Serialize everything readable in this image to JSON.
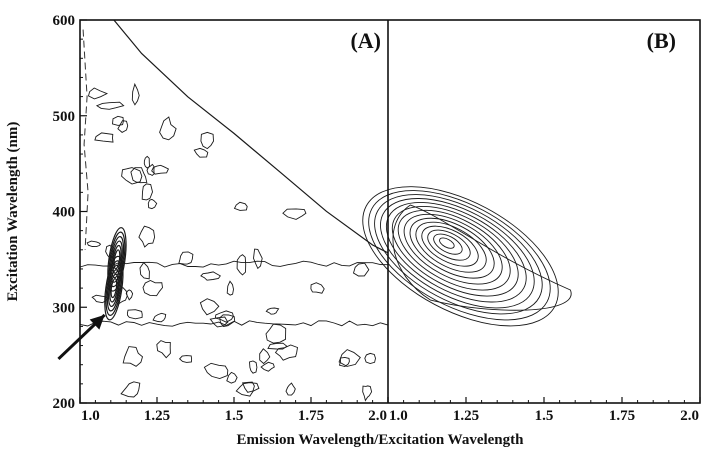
{
  "chart_data": {
    "type": "contour",
    "xlabel": "Emission Wavelength/Excitation Wavelength",
    "ylabel": "Excitation Wavelength (nm)",
    "ylim": [
      200,
      600
    ],
    "yticks": [
      "200",
      "300",
      "400",
      "500",
      "600"
    ],
    "panels": [
      {
        "label": "(A)",
        "xlim": [
          1.0,
          2.0
        ],
        "xticks": [
          "1.0",
          "1.25",
          "1.5",
          "1.75",
          "2.0"
        ],
        "features": [
          {
            "kind": "peak",
            "x": 1.11,
            "y": 320
          },
          {
            "kind": "peak",
            "x": 1.12,
            "y": 350
          }
        ],
        "arrow": {
          "from": {
            "x": 0.93,
            "y": 246
          },
          "to": {
            "x": 1.08,
            "y": 292
          }
        }
      },
      {
        "label": "(B)",
        "xlim": [
          1.0,
          2.0
        ],
        "xticks": [
          "1.0",
          "1.25",
          "1.5",
          "1.75",
          "2.0"
        ],
        "features": [
          {
            "kind": "peak",
            "x": 1.2,
            "y": 365,
            "levels": 14
          }
        ]
      }
    ]
  }
}
